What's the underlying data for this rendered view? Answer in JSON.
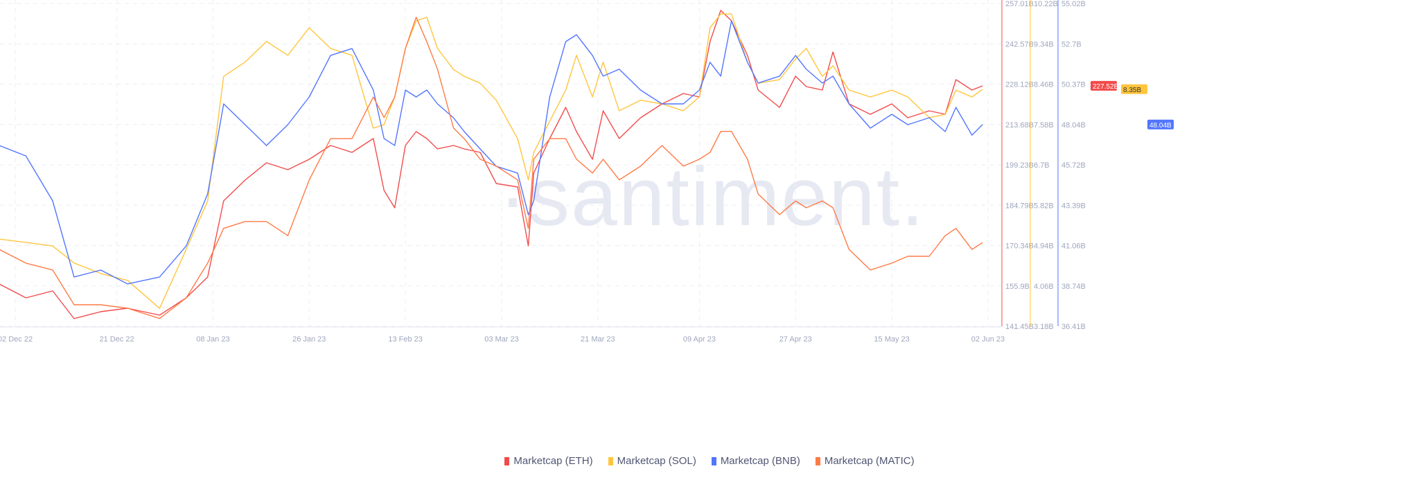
{
  "watermark": "·santiment.",
  "chart_data": {
    "type": "line",
    "title": "",
    "grid": true,
    "legend_placement": "bottom",
    "x_ticks": [
      "02 Dec 22",
      "21 Dec 22",
      "08 Jan 23",
      "26 Jan 23",
      "13 Feb 23",
      "03 Mar 23",
      "21 Mar 23",
      "09 Apr 23",
      "27 Apr 23",
      "15 May 23",
      "02 Jun 23"
    ],
    "x_tick_dates": [
      "2022-12-02",
      "2022-12-21",
      "2023-01-08",
      "2023-01-26",
      "2023-02-13",
      "2023-03-03",
      "2023-03-21",
      "2023-04-09",
      "2023-04-27",
      "2023-05-15",
      "2023-06-02"
    ],
    "x": [
      "2022-11-29",
      "2022-12-04",
      "2022-12-09",
      "2022-12-13",
      "2022-12-18",
      "2022-12-23",
      "2022-12-29",
      "2023-01-03",
      "2023-01-07",
      "2023-01-10",
      "2023-01-14",
      "2023-01-18",
      "2023-01-22",
      "2023-01-26",
      "2023-01-30",
      "2023-02-03",
      "2023-02-07",
      "2023-02-09",
      "2023-02-11",
      "2023-02-13",
      "2023-02-15",
      "2023-02-17",
      "2023-02-19",
      "2023-02-22",
      "2023-02-24",
      "2023-02-27",
      "2023-03-02",
      "2023-03-06",
      "2023-03-08",
      "2023-03-09",
      "2023-03-12",
      "2023-03-15",
      "2023-03-17",
      "2023-03-20",
      "2023-03-22",
      "2023-03-25",
      "2023-03-29",
      "2023-04-02",
      "2023-04-06",
      "2023-04-09",
      "2023-04-11",
      "2023-04-13",
      "2023-04-15",
      "2023-04-18",
      "2023-04-20",
      "2023-04-24",
      "2023-04-27",
      "2023-04-29",
      "2023-05-02",
      "2023-05-04",
      "2023-05-07",
      "2023-05-11",
      "2023-05-15",
      "2023-05-18",
      "2023-05-22",
      "2023-05-25",
      "2023-05-27",
      "2023-05-30",
      "2023-06-01"
    ],
    "series": [
      {
        "name": "Marketcap (ETH)",
        "color": "#f24b4b",
        "axis": "eth",
        "current_label": "227.52B",
        "values": [
          156.58,
          151.62,
          154.1,
          144.18,
          146.66,
          147.9,
          145.42,
          151.62,
          159.06,
          186.34,
          193.78,
          199.97,
          197.49,
          201.21,
          206.17,
          203.69,
          208.65,
          190.06,
          183.86,
          206.17,
          211.13,
          208.65,
          204.93,
          206.17,
          204.93,
          203.69,
          192.54,
          191.29,
          170.22,
          196.25,
          208.65,
          219.81,
          211.13,
          201.21,
          218.57,
          208.65,
          216.09,
          221.05,
          224.77,
          223.53,
          243.37,
          254.53,
          250.81,
          238.41,
          226.01,
          219.81,
          230.97,
          227.25,
          226.01,
          239.65,
          221.05,
          217.33,
          221.05,
          216.09,
          218.57,
          217.33,
          229.73,
          226.01,
          227.52
        ]
      },
      {
        "name": "Marketcap (SOL)",
        "color": "#ffc53d",
        "axis": "sol",
        "current_label": "8.35B",
        "values": [
          5.08,
          5.01,
          4.93,
          4.56,
          4.33,
          4.18,
          3.57,
          4.86,
          5.91,
          8.63,
          8.94,
          9.39,
          9.09,
          9.69,
          9.24,
          9.09,
          7.5,
          7.58,
          8.18,
          9.24,
          9.84,
          9.92,
          9.24,
          8.78,
          8.63,
          8.48,
          8.11,
          7.27,
          6.37,
          6.97,
          7.65,
          8.33,
          9.09,
          8.18,
          8.94,
          7.88,
          8.11,
          8.03,
          7.88,
          8.18,
          9.69,
          9.99,
          9.99,
          8.94,
          8.48,
          8.56,
          9.01,
          9.24,
          8.63,
          8.86,
          8.33,
          8.18,
          8.33,
          8.18,
          7.73,
          7.8,
          8.33,
          8.18,
          8.35
        ]
      },
      {
        "name": "Marketcap (BNB)",
        "color": "#5275ff",
        "axis": "bnb",
        "current_label": "48.04B",
        "values": [
          46.83,
          46.23,
          43.64,
          39.25,
          39.65,
          38.85,
          39.25,
          41.04,
          44.04,
          49.23,
          48.03,
          46.83,
          48.03,
          49.63,
          52.02,
          52.42,
          50.03,
          47.23,
          46.83,
          50.03,
          49.63,
          50.03,
          49.23,
          48.43,
          47.63,
          46.63,
          45.63,
          45.24,
          42.84,
          43.64,
          49.63,
          52.82,
          53.22,
          52.02,
          50.83,
          51.23,
          50.03,
          49.23,
          49.23,
          50.03,
          51.63,
          50.83,
          54.02,
          51.63,
          50.43,
          50.83,
          52.02,
          51.23,
          50.43,
          50.83,
          49.23,
          47.83,
          48.63,
          48.03,
          48.43,
          47.63,
          49.03,
          47.43,
          48.04
        ]
      },
      {
        "name": "Marketcap (MATIC)",
        "color": "#ff7a45",
        "axis": "matic",
        "values": [
          7.91,
          7.59,
          7.43,
          6.62,
          6.62,
          6.54,
          6.3,
          6.78,
          7.59,
          8.4,
          8.56,
          8.56,
          8.23,
          9.53,
          10.49,
          10.49,
          11.46,
          10.98,
          11.46,
          12.59,
          13.32,
          12.75,
          12.11,
          10.74,
          10.49,
          10.01,
          9.85,
          9.53,
          8.4,
          10.01,
          10.49,
          10.49,
          10.01,
          9.69,
          10.01,
          9.53,
          9.85,
          10.33,
          9.85,
          10.01,
          10.17,
          10.66,
          10.66,
          10.01,
          9.2,
          8.72,
          9.04,
          8.88,
          9.04,
          8.88,
          7.91,
          7.43,
          7.59,
          7.75,
          7.75,
          8.23,
          8.4,
          7.91,
          8.07
        ]
      }
    ],
    "axes": {
      "eth": {
        "ylim": [
          141.45,
          257.01
        ],
        "ticks": [
          "257.01B",
          "242.57B",
          "228.12B",
          "213.68B",
          "199.23B",
          "184.79B",
          "170.34B",
          "155.9B",
          "141.45B"
        ],
        "visible": true
      },
      "sol": {
        "ylim": [
          3.18,
          10.22
        ],
        "ticks": [
          "10.22B",
          "9.34B",
          "8.46B",
          "7.58B",
          "6.7B",
          "5.82B",
          "4.94B",
          "4.06B",
          "3.18B"
        ],
        "visible": true
      },
      "bnb": {
        "ylim": [
          36.41,
          55.02
        ],
        "ticks": [
          "55.02B",
          "52.7B",
          "50.37B",
          "48.04B",
          "45.72B",
          "43.39B",
          "41.06B",
          "38.74B",
          "36.41B"
        ],
        "visible": true
      },
      "matic": {
        "ylim": [
          6.12,
          13.64
        ],
        "visible": false
      }
    }
  }
}
